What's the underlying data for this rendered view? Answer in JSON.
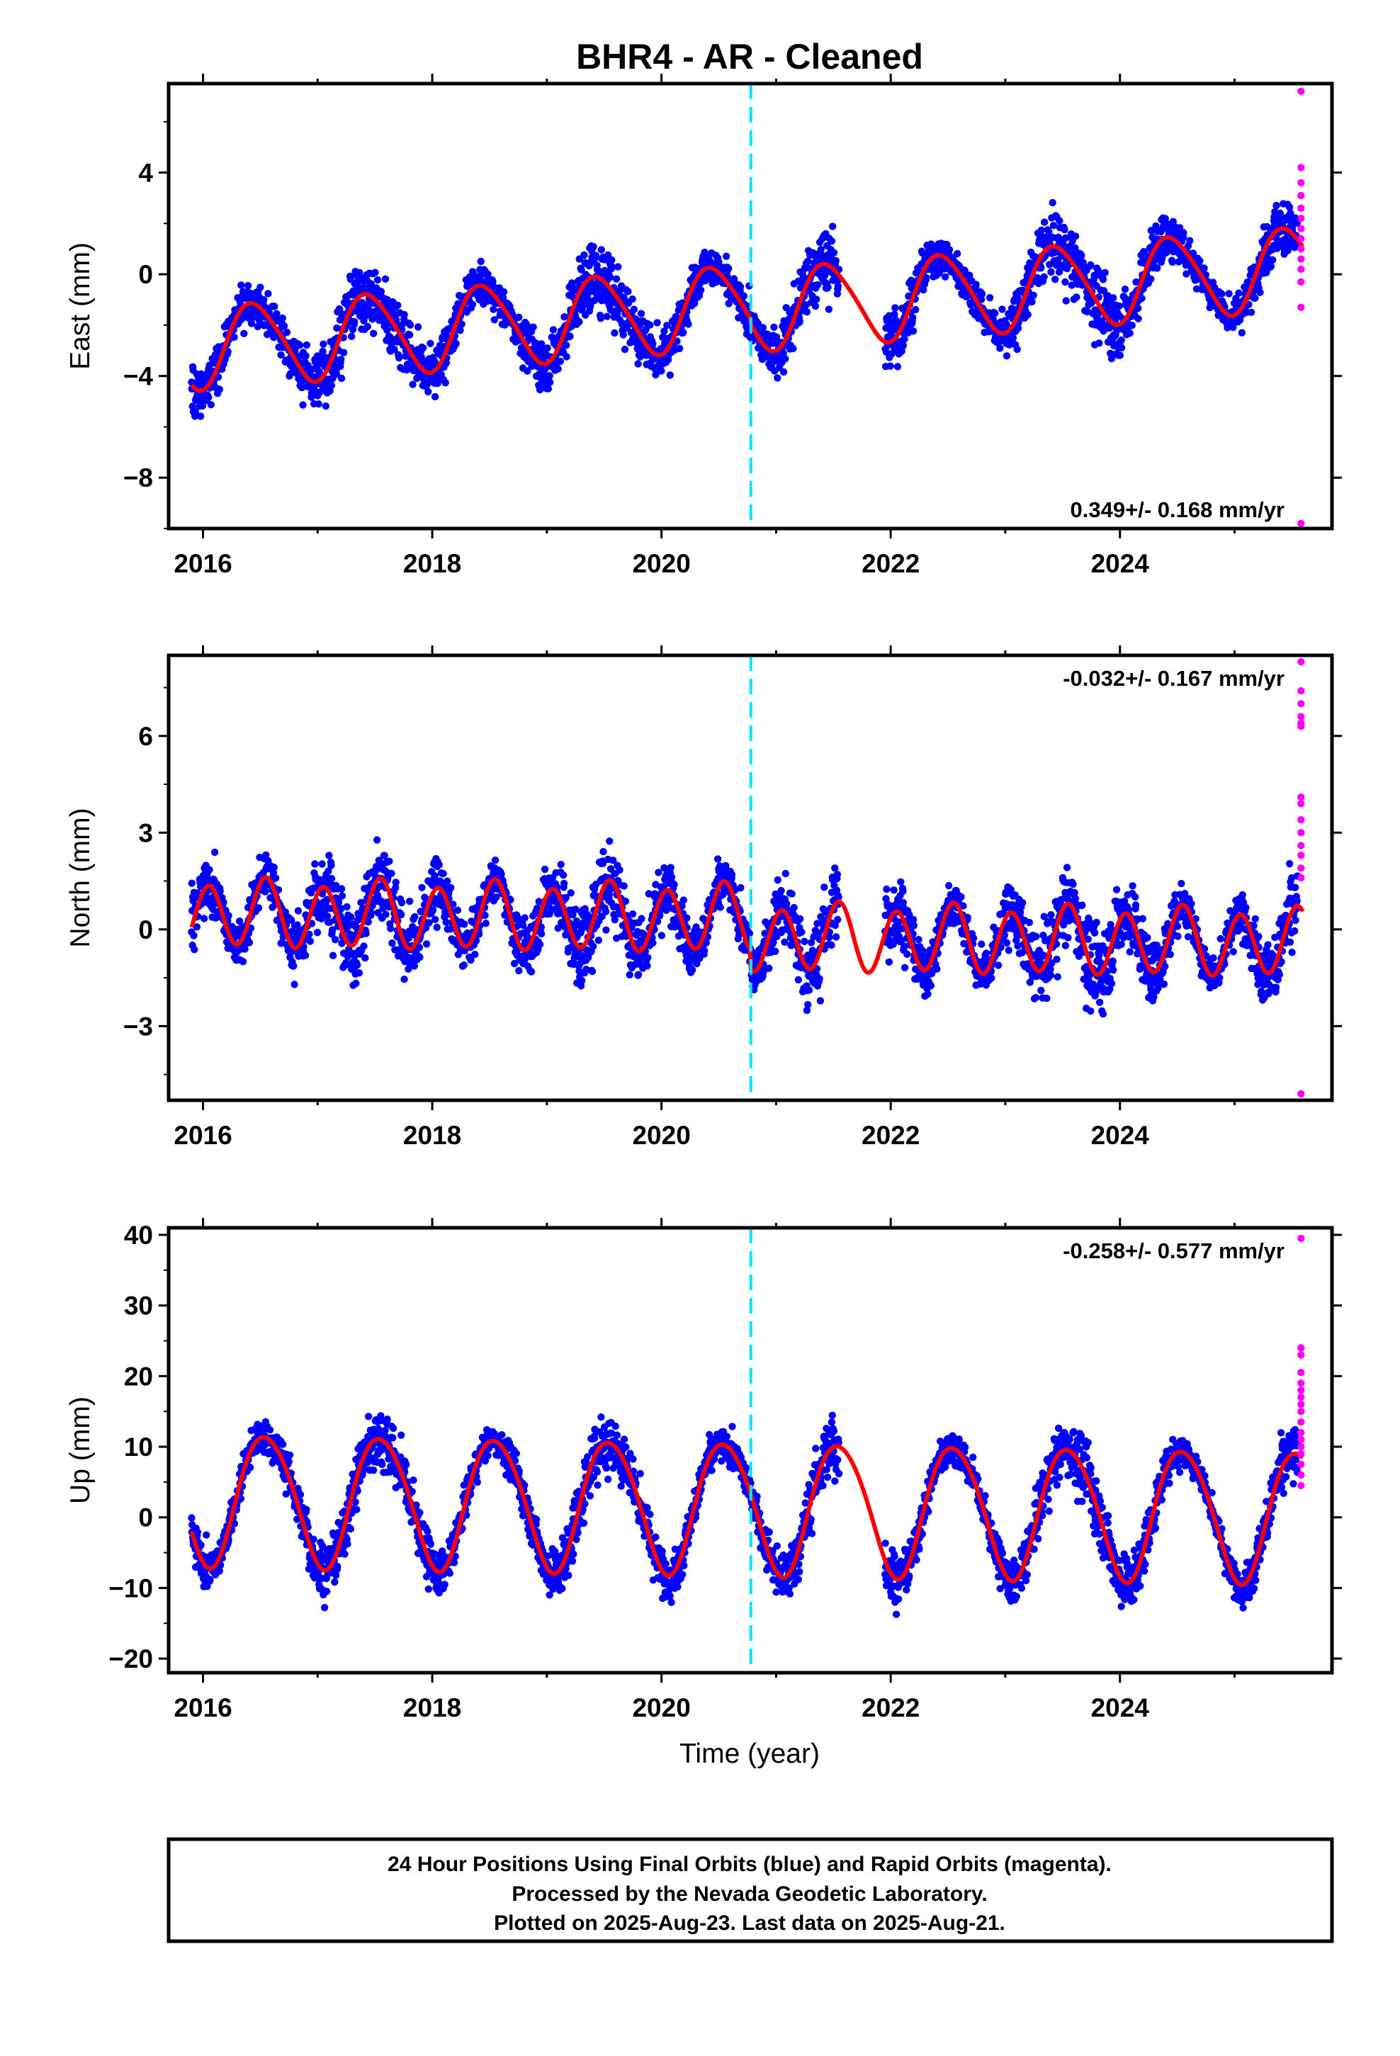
{
  "title": "BHR4  - AR - Cleaned",
  "x_axis_label": "Time (year)",
  "footer_lines": [
    "24 Hour Positions Using Final Orbits (blue) and Rapid Orbits (magenta).",
    "Processed by the Nevada Geodetic Laboratory.",
    "Plotted on 2025-Aug-23. Last data on 2025-Aug-21."
  ],
  "colors": {
    "final_orbits": "#0000ff",
    "rapid_orbits": "#ff00ff",
    "model_fit": "#ff0000",
    "equipment_change": "#00e5ff",
    "frame": "#000000"
  },
  "chart_data": [
    {
      "type": "scatter",
      "component": "East",
      "ylabel": "East (mm)",
      "xlim": [
        2015.7,
        2025.85
      ],
      "ylim": [
        -10,
        7.5
      ],
      "yticks": [
        -8,
        -4,
        0,
        4
      ],
      "xticks": [
        2016,
        2018,
        2020,
        2022,
        2024
      ],
      "rate_label": "0.349+/- 0.168 mm/yr",
      "rate_position": "bottom-right",
      "equipment_change_year": 2020.78,
      "model": {
        "offset": -1.3,
        "rate": 0.349,
        "annual_amplitude": 1.6,
        "annual_peak": 0.45,
        "semiannual_amplitude": 0.2,
        "semiannual_peak": 0.3,
        "step_at_break": -0.2
      },
      "final_orbits": {
        "start": 2015.9,
        "end": 2025.55,
        "noise": 1.0,
        "gaps": [
          [
            2021.55,
            2021.95
          ]
        ]
      },
      "rapid_orbits": {
        "x": 2025.58,
        "values": [
          7.2,
          4.2,
          3.6,
          3.1,
          2.6,
          2.2,
          1.8,
          1.4,
          1.0,
          0.6,
          0.2,
          -0.3,
          -1.3,
          -9.8
        ]
      },
      "grid": false,
      "legend": "none"
    },
    {
      "type": "scatter",
      "component": "North",
      "ylabel": "North (mm)",
      "xlim": [
        2015.7,
        2025.85
      ],
      "ylim": [
        -5.3,
        8.5
      ],
      "yticks": [
        -3,
        0,
        3,
        6
      ],
      "xticks": [
        2016,
        2018,
        2020,
        2022,
        2024
      ],
      "rate_label": "-0.032+/- 0.167 mm/yr",
      "rate_position": "top-right",
      "equipment_change_year": 2020.78,
      "model": {
        "offset": 0.35,
        "rate": -0.032,
        "annual_amplitude": 0.15,
        "annual_peak": 0.5,
        "semiannual_amplitude": 1.0,
        "semiannual_peak": 0.05,
        "step_at_break": -0.6
      },
      "final_orbits": {
        "start": 2015.9,
        "end": 2025.55,
        "noise": 0.95,
        "gaps": [
          [
            2021.55,
            2021.95
          ]
        ]
      },
      "rapid_orbits": {
        "x": 2025.58,
        "values": [
          8.3,
          7.4,
          7.0,
          6.6,
          6.4,
          6.3,
          4.1,
          3.9,
          3.4,
          3.0,
          2.6,
          2.3,
          1.9,
          1.6,
          -5.1
        ]
      },
      "grid": false,
      "legend": "none"
    },
    {
      "type": "scatter",
      "component": "Up",
      "ylabel": "Up (mm)",
      "xlim": [
        2015.7,
        2025.85
      ],
      "ylim": [
        -22,
        41
      ],
      "yticks": [
        -20,
        -10,
        0,
        10,
        20,
        30,
        40
      ],
      "xticks": [
        2016,
        2018,
        2020,
        2022,
        2024
      ],
      "rate_label": "-0.258+/- 0.577 mm/yr",
      "rate_position": "top-right",
      "equipment_change_year": 2020.78,
      "model": {
        "offset": 1.6,
        "rate": -0.258,
        "annual_amplitude": 9.3,
        "annual_peak": 0.55,
        "semiannual_amplitude": 0.8,
        "semiannual_peak": 0.35,
        "step_at_break": 0
      },
      "final_orbits": {
        "start": 2015.9,
        "end": 2025.55,
        "noise": 3.2,
        "gaps": [
          [
            2021.55,
            2021.95
          ]
        ]
      },
      "rapid_orbits": {
        "x": 2025.58,
        "values": [
          39.5,
          24.0,
          23.0,
          20.5,
          19.0,
          18.0,
          17.0,
          16.0,
          15.0,
          13.5,
          12.0,
          11.0,
          10.0,
          9.0,
          7.5,
          6.0,
          4.5
        ]
      },
      "grid": false,
      "legend": "none"
    }
  ]
}
